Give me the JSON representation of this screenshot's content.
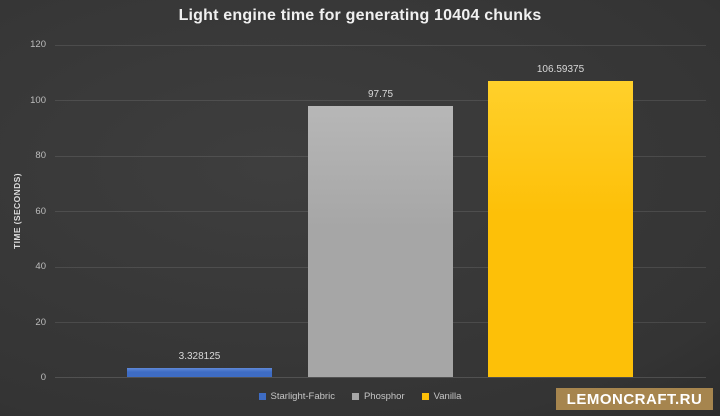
{
  "title": "Light engine time for generating 10404 chunks",
  "watermark": {
    "label": "LEMONCRAFT.RU",
    "bg_color": "#a6854e",
    "text_color": "#ffffff"
  },
  "chart_data": {
    "type": "bar",
    "title": "Light engine time for generating 10404 chunks",
    "categories": [
      "Starlight-Fabric",
      "Phosphor",
      "Vanilla"
    ],
    "values": [
      3.328125,
      97.75,
      106.59375
    ],
    "value_labels": [
      "3.328125",
      "97.75",
      "106.59375"
    ],
    "colors": [
      "#3e6cc4",
      "#a6a6a6",
      "#fdc008"
    ],
    "colors_light": [
      "#5f88d8",
      "#b7b7b7",
      "#ffd02b"
    ],
    "xlabel": "",
    "ylabel": "TIME (SECONDS)",
    "ylim": [
      0,
      120
    ],
    "yticks": [
      0,
      20,
      40,
      60,
      80,
      100,
      120
    ],
    "grid": true,
    "legend_position": "bottom",
    "background": "dark-gray-vignette"
  }
}
